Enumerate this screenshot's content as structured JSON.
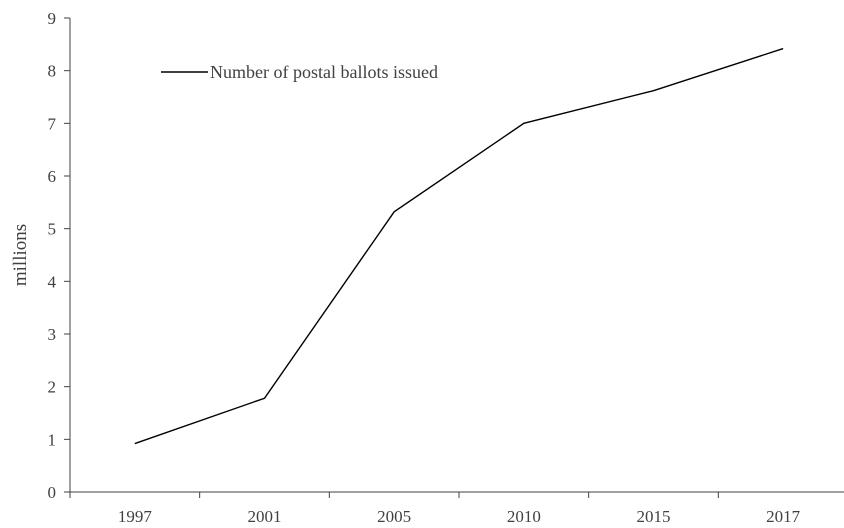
{
  "chart_data": {
    "type": "line",
    "categories": [
      "1997",
      "2001",
      "2005",
      "2010",
      "2015",
      "2017"
    ],
    "series": [
      {
        "name": "Number of postal ballots issued",
        "values": [
          0.92,
          1.78,
          5.32,
          7.0,
          7.62,
          8.42
        ],
        "color": "#000000"
      }
    ],
    "ylabel": "millions",
    "xlabel": "",
    "ylim": [
      0,
      9
    ],
    "yticks": [
      0,
      1,
      2,
      3,
      4,
      5,
      6,
      7,
      8,
      9
    ],
    "grid": false,
    "legend_position": "top-left"
  }
}
